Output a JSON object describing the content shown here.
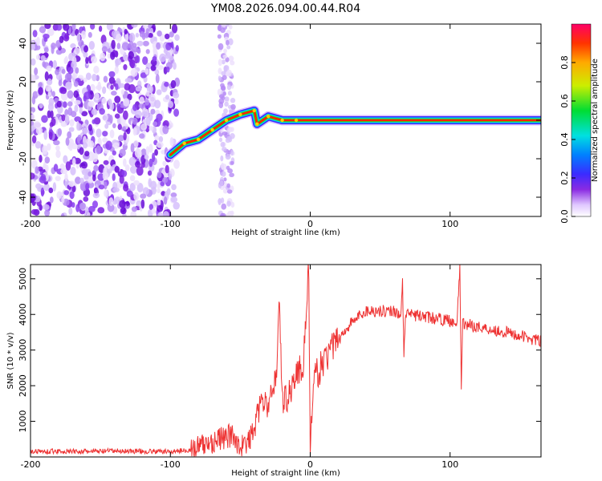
{
  "title": "YM08.2026.094.00.44.R04",
  "chart_data": [
    {
      "type": "heatmap",
      "name": "spectrogram",
      "xlabel": "Height of straight line (km)",
      "ylabel": "Frequency (Hz)",
      "xlim": [
        -200,
        165
      ],
      "ylim": [
        -50,
        50
      ],
      "x_ticks": [
        -200,
        -100,
        0,
        100
      ],
      "x_tick_labels": [
        "-200",
        "-100",
        "0",
        "100"
      ],
      "y_ticks": [
        -40,
        -20,
        0,
        20,
        40
      ],
      "y_tick_labels": [
        "-40",
        "-20",
        "0",
        "20",
        "40"
      ],
      "colorbar": {
        "label": "Normalized spectral amplitude",
        "range": [
          0,
          1
        ],
        "ticks": [
          0,
          0.2,
          0.4,
          0.6,
          0.8
        ],
        "tick_labels": [
          "0.0",
          "0.2",
          "0.4",
          "0.6",
          "0.8"
        ]
      },
      "noise_region_x": [
        -200,
        -95
      ],
      "noise_band_x": [
        -65,
        -55
      ],
      "signal_path": [
        {
          "x": -100,
          "y": -18
        },
        {
          "x": -90,
          "y": -12
        },
        {
          "x": -80,
          "y": -10
        },
        {
          "x": -70,
          "y": -5
        },
        {
          "x": -60,
          "y": 0
        },
        {
          "x": -50,
          "y": 3
        },
        {
          "x": -40,
          "y": 5
        },
        {
          "x": -38,
          "y": -2
        },
        {
          "x": -30,
          "y": 2
        },
        {
          "x": -20,
          "y": 0
        },
        {
          "x": -10,
          "y": 0
        },
        {
          "x": 0,
          "y": 0
        },
        {
          "x": 165,
          "y": 0
        }
      ]
    },
    {
      "type": "line",
      "name": "snr",
      "xlabel": "Height of straight line (km)",
      "ylabel": "SNR (10 * v/v)",
      "xlim": [
        -200,
        165
      ],
      "ylim": [
        0,
        5400
      ],
      "x_ticks": [
        -200,
        -100,
        0,
        100
      ],
      "x_tick_labels": [
        "-200",
        "-100",
        "0",
        "100"
      ],
      "y_ticks": [
        1000,
        2000,
        3000,
        4000,
        5000
      ],
      "y_tick_labels": [
        "1000",
        "2000",
        "3000",
        "4000",
        "5000"
      ],
      "series": [
        {
          "name": "SNR",
          "color": "#ee3333",
          "points": [
            {
              "x": -200,
              "y": 150
            },
            {
              "x": -180,
              "y": 160
            },
            {
              "x": -160,
              "y": 150
            },
            {
              "x": -140,
              "y": 170
            },
            {
              "x": -120,
              "y": 160
            },
            {
              "x": -100,
              "y": 150
            },
            {
              "x": -85,
              "y": 200
            },
            {
              "x": -75,
              "y": 350
            },
            {
              "x": -65,
              "y": 500
            },
            {
              "x": -55,
              "y": 600
            },
            {
              "x": -50,
              "y": 300
            },
            {
              "x": -45,
              "y": 350
            },
            {
              "x": -40,
              "y": 800
            },
            {
              "x": -35,
              "y": 1600
            },
            {
              "x": -30,
              "y": 1400
            },
            {
              "x": -24,
              "y": 2400
            },
            {
              "x": -22,
              "y": 4500
            },
            {
              "x": -20,
              "y": 1500
            },
            {
              "x": -15,
              "y": 1800
            },
            {
              "x": -10,
              "y": 2300
            },
            {
              "x": -5,
              "y": 2600
            },
            {
              "x": -1,
              "y": 5300
            },
            {
              "x": 0,
              "y": 200
            },
            {
              "x": 3,
              "y": 2200
            },
            {
              "x": 10,
              "y": 2700
            },
            {
              "x": 20,
              "y": 3300
            },
            {
              "x": 30,
              "y": 3800
            },
            {
              "x": 40,
              "y": 4100
            },
            {
              "x": 50,
              "y": 4100
            },
            {
              "x": 60,
              "y": 4100
            },
            {
              "x": 65,
              "y": 4000
            },
            {
              "x": 66,
              "y": 4900
            },
            {
              "x": 67,
              "y": 2800
            },
            {
              "x": 68,
              "y": 4000
            },
            {
              "x": 80,
              "y": 3950
            },
            {
              "x": 95,
              "y": 3850
            },
            {
              "x": 105,
              "y": 3800
            },
            {
              "x": 107,
              "y": 5300
            },
            {
              "x": 108,
              "y": 2000
            },
            {
              "x": 109,
              "y": 3750
            },
            {
              "x": 120,
              "y": 3650
            },
            {
              "x": 140,
              "y": 3500
            },
            {
              "x": 165,
              "y": 3250
            }
          ]
        }
      ]
    }
  ]
}
